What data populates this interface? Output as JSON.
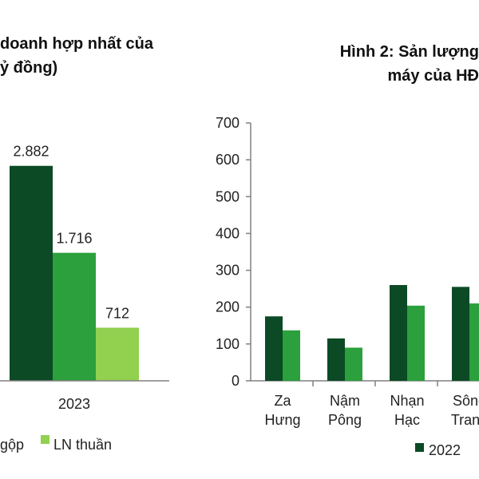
{
  "left_chart": {
    "title_lines": [
      "doanh hợp nhất của",
      "ỷ đồng)"
    ],
    "legend": [
      {
        "label": "gộp",
        "color": "#2ba03c"
      },
      {
        "label": "LN thuần",
        "color": "#92d050"
      }
    ]
  },
  "right_chart": {
    "title_lines": [
      "Hình 2: Sản lượng",
      "máy của HĐ"
    ],
    "legend": [
      {
        "label": "2022",
        "color": "#0b4a25"
      }
    ]
  },
  "chart_data": [
    {
      "type": "bar",
      "title": "doanh hợp nhất của ỷ đồng)",
      "categories": [
        "2023"
      ],
      "series": [
        {
          "values": [
            2882
          ],
          "color": "#0b4a25"
        },
        {
          "name": "gộp",
          "values": [
            1716
          ],
          "color": "#2ba03c"
        },
        {
          "name": "LN thuần",
          "values": [
            712
          ],
          "color": "#92d050"
        }
      ],
      "data_labels": [
        "2.882",
        "1.716",
        "712"
      ],
      "ylim": [
        0,
        3500
      ],
      "grid": false,
      "legend_position": "bottom"
    },
    {
      "type": "bar",
      "title": "Hình 2: Sản lượng máy của HĐ",
      "categories": [
        [
          "Za",
          "Hưng"
        ],
        [
          "Nậm",
          "Pông"
        ],
        [
          "Nhạn",
          "Hạc"
        ],
        [
          "Sông",
          "Tranh"
        ]
      ],
      "series": [
        {
          "name": "2022",
          "values": [
            175,
            115,
            260,
            255
          ],
          "color": "#0b4a25"
        },
        {
          "values": [
            137,
            90,
            204,
            210
          ],
          "color": "#2ba03c"
        }
      ],
      "yticks": [
        "0",
        "100",
        "200",
        "300",
        "400",
        "500",
        "600",
        "700"
      ],
      "ylim": [
        0,
        700
      ],
      "grid": false,
      "legend_position": "bottom"
    }
  ]
}
